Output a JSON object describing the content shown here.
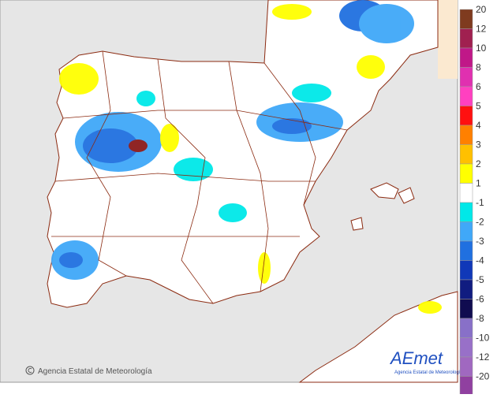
{
  "legend": {
    "labels": [
      "20",
      "12",
      "10",
      "8",
      "6",
      "5",
      "4",
      "3",
      "2",
      "1",
      "-1",
      "-2",
      "-3",
      "-4",
      "-5",
      "-6",
      "-8",
      "-10",
      "-12",
      "-20"
    ],
    "colors": [
      "#7f3b1f",
      "#a02050",
      "#c01888",
      "#e030b0",
      "#ff40c0",
      "#ff1010",
      "#ff8000",
      "#ffc000",
      "#ffff00",
      "#ffffff",
      "#00e8e8",
      "#40a8f8",
      "#2070e0",
      "#1038b8",
      "#101c80",
      "#100c50",
      "#8870c8",
      "#9870c8",
      "#a068c0",
      "#9040a0"
    ]
  },
  "footer": {
    "credit": "Agencia Estatal de Meteorología"
  },
  "logo": {
    "name": "AEmet",
    "subtitle": "Agencia Estatal de Meteorología"
  }
}
